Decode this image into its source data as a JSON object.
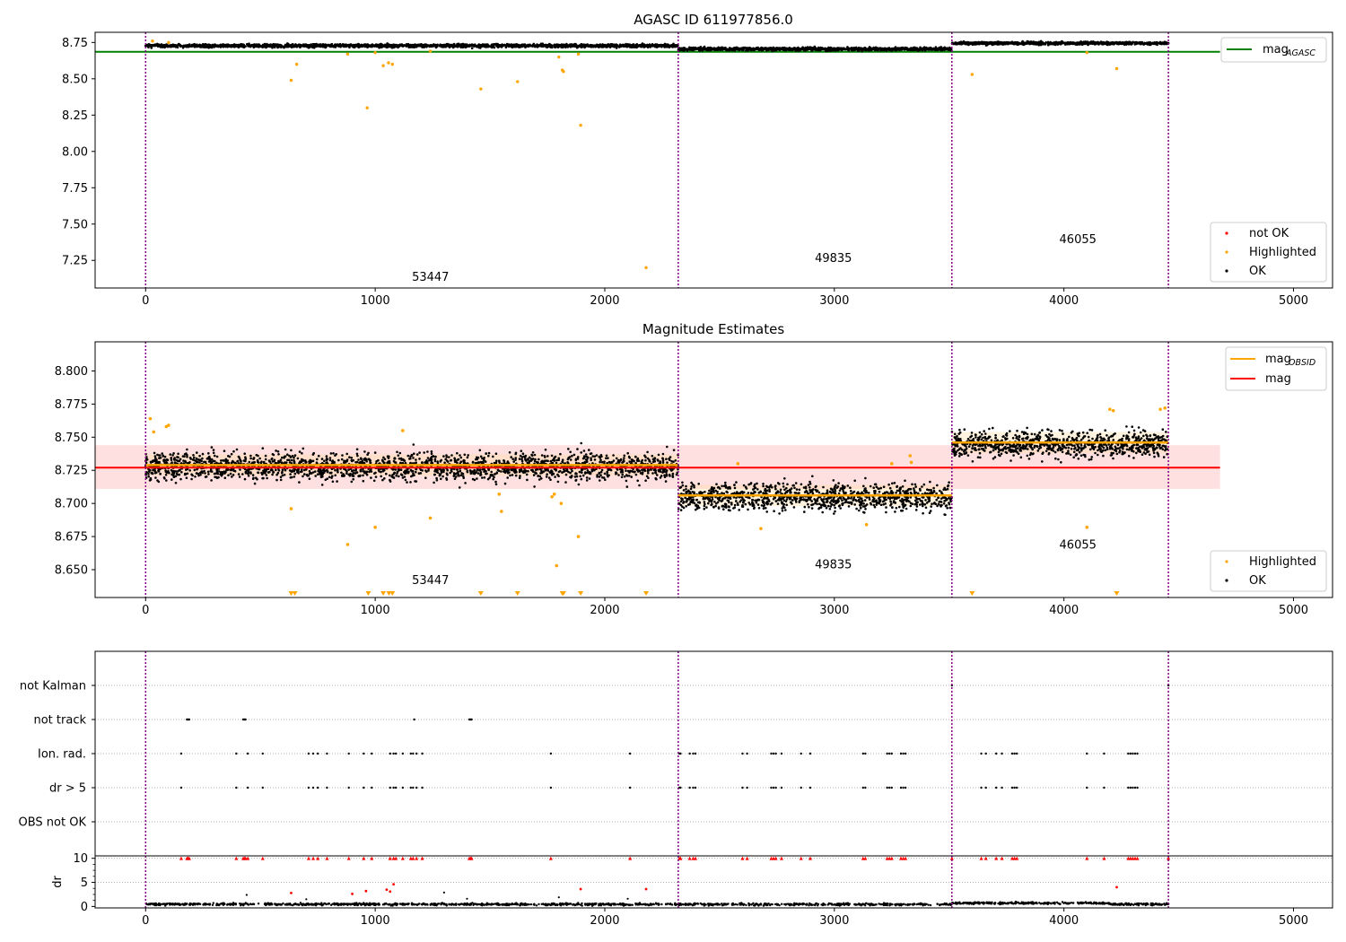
{
  "figure_title": "AGASC ID 611977856.0",
  "colors": {
    "ok": "#000000",
    "highlighted": "#ffa500",
    "not_ok": "#ff0000",
    "agasc_line": "#008000",
    "obsid_line": "#ffa500",
    "mag_line": "#ff0000",
    "mag_band": "#ffcccc",
    "obs_divider": "#800080"
  },
  "chart_data": [
    {
      "type": "scatter",
      "title": "",
      "xlim": [
        -220,
        5170
      ],
      "ylim": [
        7.06,
        8.82
      ],
      "xticks": [
        "0",
        "1000",
        "2000",
        "3000",
        "4000",
        "5000"
      ],
      "yticks": [
        "7.25",
        "7.50",
        "7.75",
        "8.00",
        "8.25",
        "8.50",
        "8.75"
      ],
      "obs_boundaries": [
        0,
        2320,
        3512,
        4455
      ],
      "obsid_labels": [
        {
          "text": "53447",
          "x": 1160,
          "y": 7.11
        },
        {
          "text": "49835",
          "x": 2915,
          "y": 7.24
        },
        {
          "text": "46055",
          "x": 3980,
          "y": 7.37
        }
      ],
      "mag_agasc": {
        "value": 8.686,
        "x_range": [
          -220,
          4680
        ]
      },
      "ok_segments": [
        {
          "x0": 0,
          "x1": 2320,
          "mean": 8.728,
          "spread": 0.009
        },
        {
          "x0": 2320,
          "x1": 3512,
          "mean": 8.705,
          "spread": 0.009
        },
        {
          "x0": 3512,
          "x1": 4455,
          "mean": 8.745,
          "spread": 0.008
        }
      ],
      "highlighted_points": [
        {
          "x": 634,
          "y": 8.49
        },
        {
          "x": 658,
          "y": 8.6
        },
        {
          "x": 880,
          "y": 8.67
        },
        {
          "x": 965,
          "y": 8.3
        },
        {
          "x": 1000,
          "y": 8.68
        },
        {
          "x": 1035,
          "y": 8.59
        },
        {
          "x": 1058,
          "y": 8.61
        },
        {
          "x": 1075,
          "y": 8.6
        },
        {
          "x": 1240,
          "y": 8.69
        },
        {
          "x": 1460,
          "y": 8.43
        },
        {
          "x": 1620,
          "y": 8.48
        },
        {
          "x": 1800,
          "y": 8.65
        },
        {
          "x": 1815,
          "y": 8.56
        },
        {
          "x": 1820,
          "y": 8.55
        },
        {
          "x": 1885,
          "y": 8.67
        },
        {
          "x": 1895,
          "y": 8.18
        },
        {
          "x": 2180,
          "y": 7.2
        },
        {
          "x": 3600,
          "y": 8.53
        },
        {
          "x": 4100,
          "y": 8.68
        },
        {
          "x": 4230,
          "y": 8.57
        },
        {
          "x": 100,
          "y": 8.75
        },
        {
          "x": 30,
          "y": 8.76
        }
      ],
      "legend_lines": [
        {
          "label": "mag",
          "subscript": "AGASC"
        }
      ],
      "legend_points": [
        "not OK",
        "Highlighted",
        "OK"
      ]
    },
    {
      "type": "scatter",
      "title": "Magnitude Estimates",
      "xlim": [
        -220,
        5170
      ],
      "ylim": [
        8.629,
        8.822
      ],
      "xticks": [
        "0",
        "1000",
        "2000",
        "3000",
        "4000",
        "5000"
      ],
      "yticks": [
        "8.650",
        "8.675",
        "8.700",
        "8.725",
        "8.750",
        "8.775",
        "8.800"
      ],
      "obs_boundaries": [
        0,
        2320,
        3512,
        4455
      ],
      "obsid_labels": [
        {
          "text": "53447",
          "x": 1160,
          "y": 8.639
        },
        {
          "text": "49835",
          "x": 2915,
          "y": 8.651
        },
        {
          "text": "46055",
          "x": 3980,
          "y": 8.666
        }
      ],
      "mag": {
        "value": 8.727,
        "band": [
          8.711,
          8.744
        ],
        "x_range": [
          -220,
          4680
        ]
      },
      "mag_obsid": [
        {
          "x0": 0,
          "x1": 2320,
          "value": 8.729
        },
        {
          "x0": 2320,
          "x1": 3512,
          "value": 8.706
        },
        {
          "x0": 3512,
          "x1": 4455,
          "value": 8.746
        }
      ],
      "ok_segments": [
        {
          "x0": 0,
          "x1": 2320,
          "mean": 8.728,
          "spread": 0.0085
        },
        {
          "x0": 2320,
          "x1": 3512,
          "mean": 8.705,
          "spread": 0.0085
        },
        {
          "x0": 3512,
          "x1": 4455,
          "mean": 8.745,
          "spread": 0.008
        }
      ],
      "highlighted_points": [
        {
          "x": 20,
          "y": 8.764
        },
        {
          "x": 35,
          "y": 8.754
        },
        {
          "x": 90,
          "y": 8.758
        },
        {
          "x": 100,
          "y": 8.759
        },
        {
          "x": 634,
          "y": 8.696
        },
        {
          "x": 880,
          "y": 8.669
        },
        {
          "x": 1000,
          "y": 8.682
        },
        {
          "x": 1120,
          "y": 8.755
        },
        {
          "x": 1240,
          "y": 8.689
        },
        {
          "x": 1540,
          "y": 8.707
        },
        {
          "x": 1550,
          "y": 8.694
        },
        {
          "x": 1770,
          "y": 8.705
        },
        {
          "x": 1780,
          "y": 8.707
        },
        {
          "x": 1790,
          "y": 8.653
        },
        {
          "x": 1810,
          "y": 8.7
        },
        {
          "x": 1885,
          "y": 8.675
        },
        {
          "x": 2580,
          "y": 8.73
        },
        {
          "x": 2680,
          "y": 8.681
        },
        {
          "x": 3140,
          "y": 8.684
        },
        {
          "x": 3250,
          "y": 8.73
        },
        {
          "x": 3330,
          "y": 8.736
        },
        {
          "x": 3335,
          "y": 8.731
        },
        {
          "x": 4100,
          "y": 8.682
        },
        {
          "x": 4200,
          "y": 8.771
        },
        {
          "x": 4215,
          "y": 8.77
        },
        {
          "x": 4420,
          "y": 8.771
        },
        {
          "x": 4440,
          "y": 8.772
        }
      ],
      "clipped_points_x": [
        634,
        650,
        970,
        1035,
        1060,
        1075,
        1460,
        1620,
        1815,
        1820,
        1895,
        2180,
        3600,
        4230
      ],
      "legend_lines": [
        {
          "label": "mag",
          "subscript": "OBSID"
        },
        {
          "label": "mag",
          "subscript": ""
        }
      ],
      "legend_points": [
        "Highlighted",
        "OK"
      ]
    },
    {
      "type": "scatter",
      "title": "",
      "xlim": [
        -220,
        5170
      ],
      "xticks": [
        "0",
        "1000",
        "2000",
        "3000",
        "4000",
        "5000"
      ],
      "obs_boundaries": [
        0,
        2320,
        3512,
        4455
      ],
      "flag_rows": [
        "not Kalman",
        "not track",
        "Ion. rad.",
        "dr > 5",
        "OBS not OK"
      ],
      "flag_points": {
        "not Kalman": [
          3512,
          4455
        ],
        "not track": [
          180,
          185,
          190,
          425,
          430,
          435,
          1170,
          1410,
          1415,
          1420
        ],
        "Ion. rad.": [
          155,
          395,
          445,
          510,
          710,
          730,
          750,
          790,
          885,
          950,
          985,
          1065,
          1080,
          1090,
          1120,
          1155,
          1165,
          1180,
          1205,
          1765,
          2110,
          2325,
          2330,
          2370,
          2385,
          2395,
          2600,
          2620,
          2725,
          2735,
          2745,
          2770,
          2855,
          2895,
          3125,
          3135,
          3230,
          3240,
          3250,
          3290,
          3300,
          3310,
          3640,
          3660,
          3705,
          3730,
          3775,
          3785,
          3795,
          4100,
          4175,
          4280,
          4290,
          4300,
          4310,
          4320
        ],
        "dr > 5": [
          155,
          395,
          445,
          510,
          710,
          730,
          750,
          790,
          885,
          950,
          985,
          1065,
          1080,
          1090,
          1120,
          1155,
          1165,
          1180,
          1205,
          1765,
          2110,
          2325,
          2330,
          2370,
          2385,
          2395,
          2600,
          2620,
          2725,
          2735,
          2745,
          2770,
          2855,
          2895,
          3125,
          3135,
          3230,
          3240,
          3250,
          3290,
          3300,
          3310,
          3640,
          3660,
          3705,
          3730,
          3775,
          3785,
          3795,
          4100,
          4175,
          4280,
          4290,
          4300,
          4310,
          4320
        ],
        "OBS not OK": []
      }
    },
    {
      "type": "scatter",
      "title": "",
      "xlim": [
        -220,
        5170
      ],
      "ylim": [
        -0.3,
        10.5
      ],
      "ylabel": "dr",
      "yticks": [
        "0",
        "5",
        "10"
      ],
      "xticks": [
        "0",
        "1000",
        "2000",
        "3000",
        "4000",
        "5000"
      ],
      "obs_boundaries": [
        0,
        2320,
        3512,
        4455
      ],
      "capped_value": 10,
      "capped_points_x": [
        155,
        180,
        185,
        190,
        395,
        425,
        430,
        435,
        445,
        510,
        710,
        730,
        750,
        790,
        885,
        950,
        985,
        1065,
        1080,
        1090,
        1120,
        1155,
        1165,
        1180,
        1205,
        1410,
        1415,
        1420,
        1765,
        2110,
        2325,
        2330,
        2370,
        2385,
        2395,
        2600,
        2620,
        2725,
        2735,
        2745,
        2770,
        2855,
        2895,
        3125,
        3135,
        3230,
        3240,
        3250,
        3290,
        3300,
        3310,
        3512,
        3640,
        3660,
        3705,
        3730,
        3775,
        3785,
        3795,
        4100,
        4175,
        4280,
        4290,
        4300,
        4310,
        4320,
        4455
      ],
      "scattered_red": [
        {
          "x": 634,
          "y": 2.8
        },
        {
          "x": 900,
          "y": 2.6
        },
        {
          "x": 960,
          "y": 3.2
        },
        {
          "x": 1050,
          "y": 3.5
        },
        {
          "x": 1065,
          "y": 3.1
        },
        {
          "x": 1080,
          "y": 4.6
        },
        {
          "x": 1895,
          "y": 3.6
        },
        {
          "x": 2180,
          "y": 3.6
        },
        {
          "x": 4230,
          "y": 4.0
        }
      ],
      "scattered_black": [
        {
          "x": 440,
          "y": 2.4
        },
        {
          "x": 700,
          "y": 1.5
        },
        {
          "x": 1300,
          "y": 2.9
        },
        {
          "x": 1400,
          "y": 1.6
        },
        {
          "x": 1800,
          "y": 1.9
        },
        {
          "x": 2100,
          "y": 1.6
        }
      ],
      "baseline": {
        "mean": 0.45,
        "spread": 0.2
      }
    }
  ]
}
